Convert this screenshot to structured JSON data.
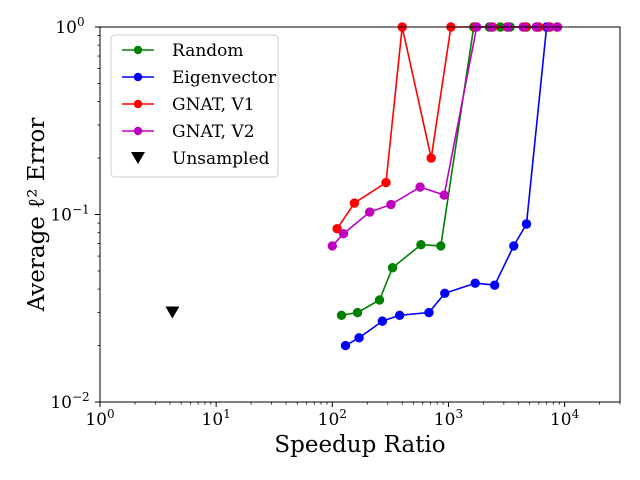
{
  "chart_data": {
    "type": "line",
    "xscale": "log",
    "yscale": "log",
    "xlim": [
      1,
      30000
    ],
    "ylim": [
      0.01,
      1.0
    ],
    "xlabel": "Speedup Ratio",
    "ylabel": "Average ℓ² Error",
    "xticks": [
      {
        "value": 1,
        "base": "10",
        "exp": "0"
      },
      {
        "value": 10,
        "base": "10",
        "exp": "1"
      },
      {
        "value": 100,
        "base": "10",
        "exp": "2"
      },
      {
        "value": 1000,
        "base": "10",
        "exp": "3"
      },
      {
        "value": 10000,
        "base": "10",
        "exp": "4"
      }
    ],
    "yticks": [
      {
        "value": 0.01,
        "base": "10",
        "exp": "−2"
      },
      {
        "value": 0.1,
        "base": "10",
        "exp": "−1"
      },
      {
        "value": 1,
        "base": "10",
        "exp": "0"
      }
    ],
    "grid": false,
    "legend": "top-left",
    "series": [
      {
        "name": "Random",
        "color": "#008000",
        "marker": "circle",
        "x": [
          120,
          165,
          255,
          330,
          580,
          860,
          1650,
          2250,
          2800,
          3400,
          4700,
          5800,
          7200,
          8600
        ],
        "y": [
          0.029,
          0.03,
          0.035,
          0.052,
          0.069,
          0.068,
          1.0,
          1.0,
          1.0,
          1.0,
          1.0,
          1.0,
          1.0,
          1.0
        ]
      },
      {
        "name": "Eigenvector",
        "color": "#0000ff",
        "marker": "circle",
        "x": [
          130,
          170,
          270,
          380,
          680,
          930,
          1700,
          2500,
          3650,
          4700,
          7000
        ],
        "y": [
          0.02,
          0.022,
          0.027,
          0.029,
          0.03,
          0.038,
          0.043,
          0.042,
          0.068,
          0.089,
          1.0
        ]
      },
      {
        "name": "GNAT, V1",
        "color": "#ff0000",
        "marker": "circle",
        "x": [
          110,
          155,
          290,
          400,
          710,
          1050,
          1700,
          2400,
          3200,
          4600,
          6000,
          7500
        ],
        "y": [
          0.084,
          0.115,
          0.148,
          1.0,
          0.2,
          1.0,
          1.0,
          1.0,
          1.0,
          1.0,
          1.0,
          1.0
        ]
      },
      {
        "name": "GNAT, V2",
        "color": "#bf00bf",
        "marker": "circle",
        "x": [
          100,
          125,
          210,
          320,
          570,
          920,
          1750,
          2350,
          3250,
          4400,
          5700,
          7300,
          8700
        ],
        "y": [
          0.068,
          0.079,
          0.103,
          0.113,
          0.14,
          0.127,
          1.0,
          1.0,
          1.0,
          1.0,
          1.0,
          1.0,
          1.0
        ]
      }
    ],
    "unsampled": {
      "name": "Unsampled",
      "color": "#000000",
      "marker": "triangle-down",
      "x": 4.2,
      "y": 0.03
    }
  }
}
